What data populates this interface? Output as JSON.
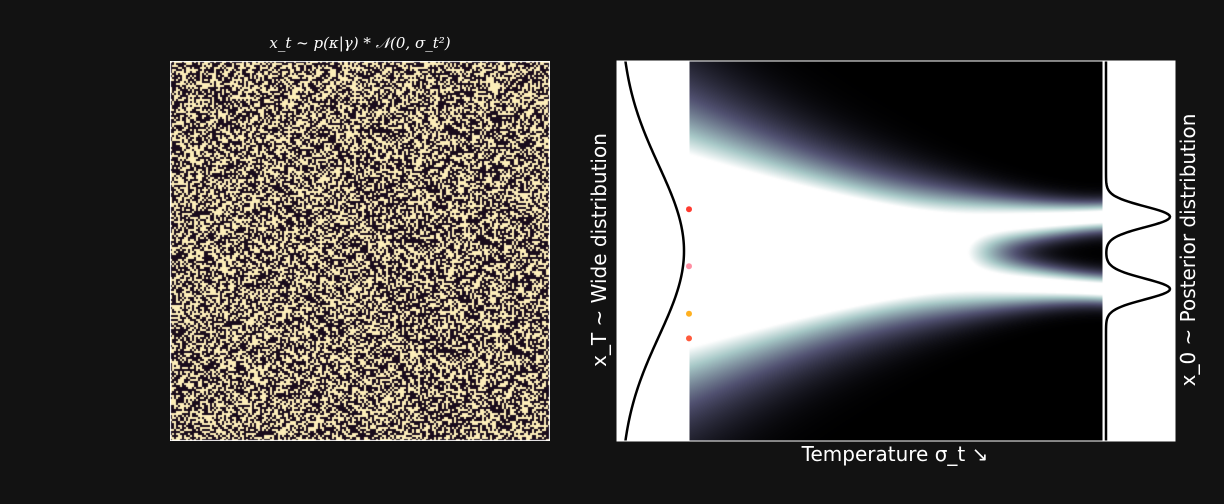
{
  "left_panel": {
    "title": "x_t ~ p(κ|γ) * 𝒩(0, σ_t²)",
    "colors": {
      "light": "#FCEDB9",
      "dark": "#1A0C1C"
    }
  },
  "chart_data": {
    "type": "heatmap",
    "title": "",
    "xlabel": "Temperature σ_t ↘",
    "ylabel_left": "x_T ~ Wide distribution",
    "ylabel_right": "x_0 ~ Posterior distribution",
    "xlim": [
      0,
      1
    ],
    "ylim": [
      -1,
      1
    ],
    "colormap": "bone",
    "wide_distribution": {
      "mean": 0.0,
      "std": 0.45
    },
    "posterior_distribution": {
      "modes": [
        -0.2,
        0.18
      ],
      "std": 0.055
    },
    "markers": [
      {
        "y": 0.22,
        "color": "#ff3b30"
      },
      {
        "y": -0.08,
        "color": "#ff8fa3"
      },
      {
        "y": -0.33,
        "color": "#ffb020"
      },
      {
        "y": -0.46,
        "color": "#ff5a3c"
      }
    ]
  }
}
